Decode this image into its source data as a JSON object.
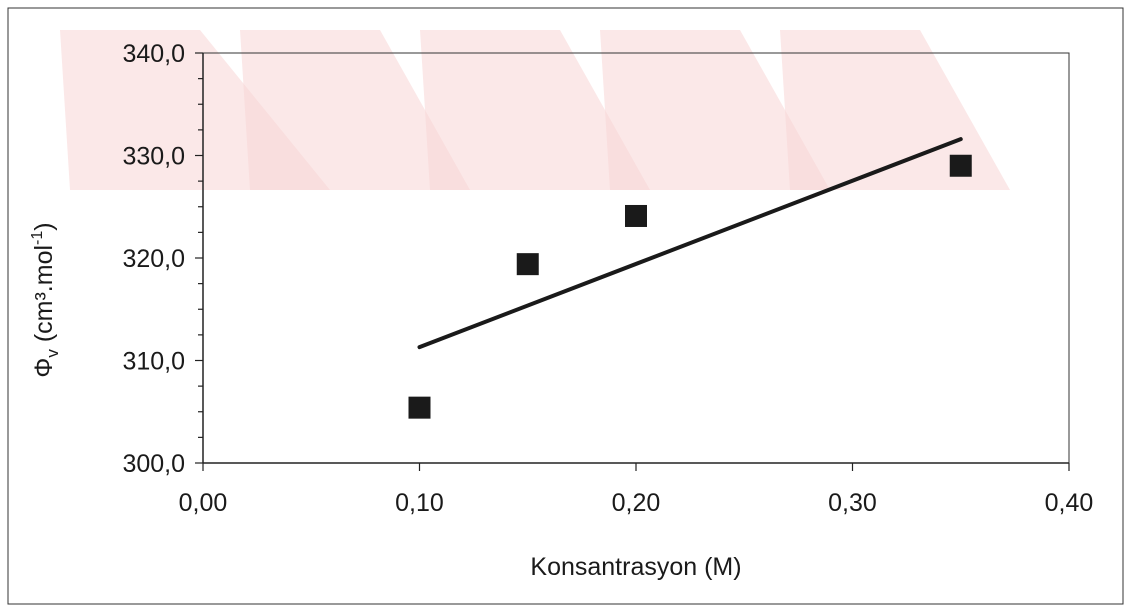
{
  "chart_data": {
    "type": "scatter",
    "title": "",
    "xlabel": "Konsantrasyon (M)",
    "ylabel": {
      "symbol": "Φ",
      "subscript": "v",
      "unit_prefix": " (cm³.mol",
      "unit_superscript": "-1",
      "unit_suffix": ")"
    },
    "xlim": [
      0,
      0.4
    ],
    "ylim": [
      300,
      340
    ],
    "xticks": [
      0.0,
      0.1,
      0.2,
      0.3,
      0.4
    ],
    "xtick_labels": [
      "0,00",
      "0,10",
      "0,20",
      "0,30",
      "0,40"
    ],
    "yticks": [
      300,
      310,
      320,
      330,
      340
    ],
    "ytick_labels": [
      "300,0",
      "310,0",
      "320,0",
      "330,0",
      "340,0"
    ],
    "y_minor_step": 2.5,
    "grid": false,
    "legend": "none",
    "series": [
      {
        "marker": "square",
        "color": "#1a1a1a",
        "points": [
          {
            "x": 0.1,
            "y": 305.4
          },
          {
            "x": 0.15,
            "y": 319.4
          },
          {
            "x": 0.2,
            "y": 324.1
          },
          {
            "x": 0.35,
            "y": 329.0
          }
        ]
      }
    ],
    "trendline": {
      "type": "linear",
      "color": "#1a1a1a",
      "from": {
        "x": 0.1,
        "y": 311.3
      },
      "to": {
        "x": 0.35,
        "y": 331.6
      }
    },
    "watermark_color": "#f7d6d6"
  }
}
